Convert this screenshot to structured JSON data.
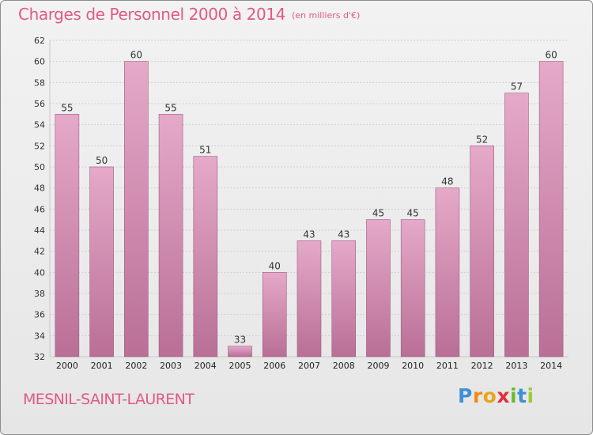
{
  "header": {
    "title": "Charges de Personnel 2000 à 2014",
    "subtitle": "(en milliers d'€)"
  },
  "footer": {
    "location": "MESNIL-SAINT-LAURENT",
    "brand_letters": [
      {
        "ch": "P",
        "color": "#3f8fd6"
      },
      {
        "ch": "r",
        "color": "#f08a1c"
      },
      {
        "ch": "o",
        "color": "#e9a51a"
      },
      {
        "ch": "x",
        "color": "#e0303a"
      },
      {
        "ch": "i",
        "color": "#6bbb2b"
      },
      {
        "ch": "t",
        "color": "#3f8fd6"
      },
      {
        "ch": "i",
        "color": "#9acb3a"
      }
    ]
  },
  "colors": {
    "bar_top": "#e5a9c9",
    "bar_bottom": "#b96f96",
    "bar_edge": "#a05a80",
    "title": "#e05a86"
  },
  "chart_data": {
    "type": "bar",
    "title": "Charges de Personnel 2000 à 2014",
    "subtitle": "(en milliers d'€)",
    "categories": [
      "2000",
      "2001",
      "2002",
      "2003",
      "2004",
      "2005",
      "2006",
      "2007",
      "2008",
      "2009",
      "2010",
      "2011",
      "2012",
      "2013",
      "2014"
    ],
    "values": [
      55,
      50,
      60,
      55,
      51,
      33,
      40,
      43,
      43,
      45,
      45,
      48,
      52,
      57,
      60
    ],
    "ylim": [
      32,
      62
    ],
    "yticks": [
      32,
      34,
      36,
      38,
      40,
      42,
      44,
      46,
      48,
      50,
      52,
      54,
      56,
      58,
      60,
      62
    ],
    "grid": true,
    "data_labels": true
  }
}
